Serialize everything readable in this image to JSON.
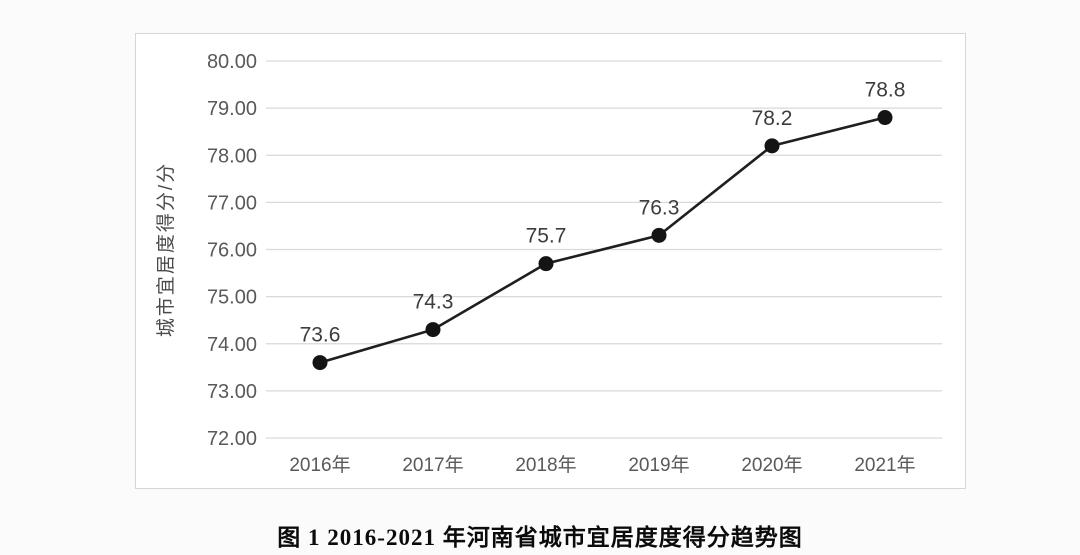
{
  "figure": {
    "caption": "图 1 2016-2021 年河南省城市宜居度度得分趋势图"
  },
  "chart_data": {
    "type": "line",
    "title": "",
    "xlabel": "",
    "ylabel": "城市宜居度得分/分",
    "categories": [
      "2016年",
      "2017年",
      "2018年",
      "2019年",
      "2020年",
      "2021年"
    ],
    "series": [
      {
        "name": "城市宜居度得分",
        "values": [
          73.6,
          74.3,
          75.7,
          76.3,
          78.2,
          78.8
        ],
        "point_labels": [
          "73.6",
          "74.3",
          "75.7",
          "76.3",
          "78.2",
          "78.8"
        ]
      }
    ],
    "ylim": [
      72,
      80
    ],
    "ytick_step": 1,
    "ytick_decimals": 2,
    "grid": "horizontal",
    "legend": "none",
    "marker": "filled-circle",
    "colors": {
      "line": "#1f1f1f",
      "marker": "#141414",
      "grid": "#d9d9d9",
      "tick_label": "#595959",
      "point_label": "#3d3d3d",
      "axis_title": "#4a4a4a"
    }
  }
}
